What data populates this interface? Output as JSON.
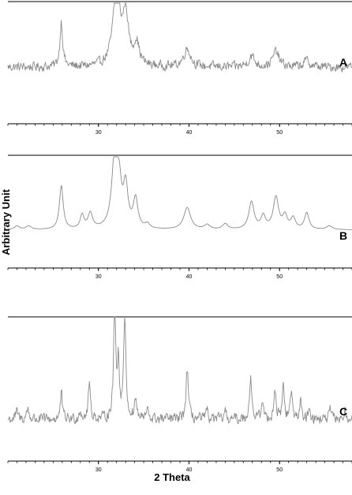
{
  "chart_data": {
    "type": "line",
    "xlabel": "2 Theta",
    "ylabel": "Arbitrary Unit",
    "xlim": [
      20,
      58
    ],
    "x_ticks": [
      30,
      40,
      50
    ],
    "line_color": "#8a8a8a",
    "axis_color": "#000000",
    "grid": false,
    "series": [
      {
        "name": "A",
        "noise": 0.045,
        "baseline": 0.3,
        "peaks": [
          {
            "x": 25.9,
            "y": 0.5,
            "w": 0.18
          },
          {
            "x": 32.0,
            "y": 0.88,
            "w": 0.45
          },
          {
            "x": 33.0,
            "y": 0.55,
            "w": 0.35
          },
          {
            "x": 34.2,
            "y": 0.25,
            "w": 0.35
          },
          {
            "x": 39.8,
            "y": 0.2,
            "w": 0.45
          },
          {
            "x": 46.9,
            "y": 0.12,
            "w": 0.4
          },
          {
            "x": 49.6,
            "y": 0.17,
            "w": 0.4
          },
          {
            "x": 53.0,
            "y": 0.07,
            "w": 0.4
          }
        ]
      },
      {
        "name": "B",
        "noise": 0.0,
        "baseline": 0.2,
        "peaks": [
          {
            "x": 21.0,
            "y": 0.04,
            "w": 0.35
          },
          {
            "x": 22.3,
            "y": 0.04,
            "w": 0.35
          },
          {
            "x": 25.9,
            "y": 0.48,
            "w": 0.25
          },
          {
            "x": 28.2,
            "y": 0.15,
            "w": 0.25
          },
          {
            "x": 29.1,
            "y": 0.17,
            "w": 0.3
          },
          {
            "x": 31.8,
            "y": 0.82,
            "w": 0.38
          },
          {
            "x": 32.3,
            "y": 0.38,
            "w": 0.28
          },
          {
            "x": 33.0,
            "y": 0.45,
            "w": 0.3
          },
          {
            "x": 34.1,
            "y": 0.32,
            "w": 0.3
          },
          {
            "x": 35.4,
            "y": 0.05,
            "w": 0.3
          },
          {
            "x": 39.8,
            "y": 0.24,
            "w": 0.45
          },
          {
            "x": 42.0,
            "y": 0.05,
            "w": 0.35
          },
          {
            "x": 44.0,
            "y": 0.06,
            "w": 0.35
          },
          {
            "x": 46.9,
            "y": 0.3,
            "w": 0.35
          },
          {
            "x": 48.2,
            "y": 0.14,
            "w": 0.3
          },
          {
            "x": 49.6,
            "y": 0.35,
            "w": 0.35
          },
          {
            "x": 50.6,
            "y": 0.14,
            "w": 0.3
          },
          {
            "x": 51.5,
            "y": 0.12,
            "w": 0.3
          },
          {
            "x": 53.0,
            "y": 0.18,
            "w": 0.3
          },
          {
            "x": 55.5,
            "y": 0.04,
            "w": 0.4
          }
        ]
      },
      {
        "name": "C",
        "noise": 0.04,
        "baseline": 0.15,
        "peaks": [
          {
            "x": 21.0,
            "y": 0.06,
            "w": 0.15
          },
          {
            "x": 22.2,
            "y": 0.09,
            "w": 0.15
          },
          {
            "x": 25.9,
            "y": 0.22,
            "w": 0.12
          },
          {
            "x": 28.0,
            "y": 0.07,
            "w": 0.15
          },
          {
            "x": 29.0,
            "y": 0.3,
            "w": 0.14
          },
          {
            "x": 31.8,
            "y": 0.97,
            "w": 0.14
          },
          {
            "x": 32.2,
            "y": 0.45,
            "w": 0.12
          },
          {
            "x": 32.9,
            "y": 0.84,
            "w": 0.15
          },
          {
            "x": 34.1,
            "y": 0.16,
            "w": 0.15
          },
          {
            "x": 35.4,
            "y": 0.07,
            "w": 0.15
          },
          {
            "x": 39.8,
            "y": 0.42,
            "w": 0.15
          },
          {
            "x": 42.0,
            "y": 0.06,
            "w": 0.15
          },
          {
            "x": 44.0,
            "y": 0.05,
            "w": 0.15
          },
          {
            "x": 46.8,
            "y": 0.35,
            "w": 0.15
          },
          {
            "x": 48.1,
            "y": 0.15,
            "w": 0.14
          },
          {
            "x": 49.5,
            "y": 0.24,
            "w": 0.14
          },
          {
            "x": 50.4,
            "y": 0.27,
            "w": 0.14
          },
          {
            "x": 51.3,
            "y": 0.22,
            "w": 0.14
          },
          {
            "x": 52.3,
            "y": 0.14,
            "w": 0.14
          },
          {
            "x": 53.3,
            "y": 0.1,
            "w": 0.15
          },
          {
            "x": 55.6,
            "y": 0.07,
            "w": 0.15
          },
          {
            "x": 57.2,
            "y": 0.06,
            "w": 0.15
          }
        ]
      }
    ]
  }
}
